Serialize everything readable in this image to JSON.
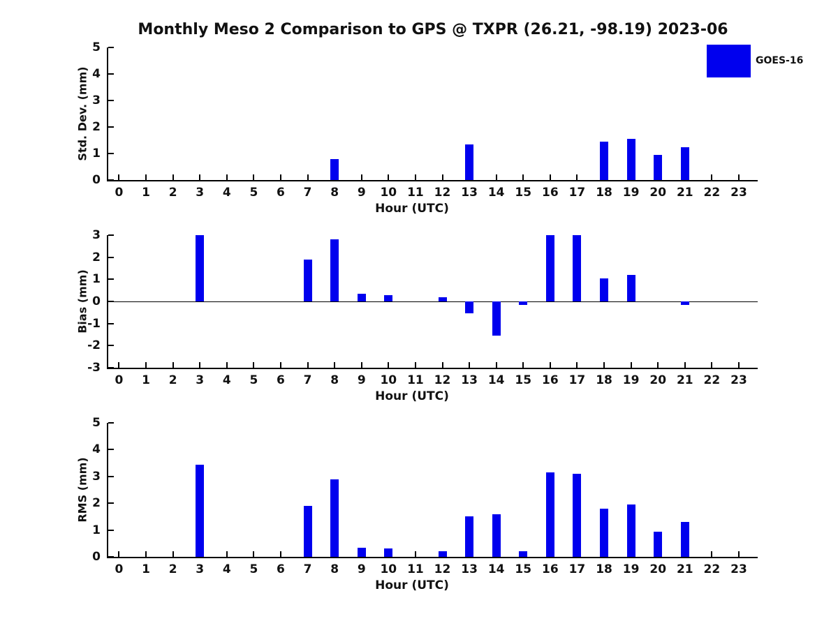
{
  "title": "Monthly Meso 2 Comparison to GPS @ TXPR (26.21, -98.19) 2023-06",
  "legend": {
    "label": "GOES-16",
    "color": "#0000ee",
    "position": "top-right-inside-first-axes"
  },
  "axis_color": "#000000",
  "text_color": "#111111",
  "chart_data": [
    {
      "type": "bar",
      "name": "std-dev",
      "title": "",
      "ylabel": "Std. Dev. (mm)",
      "xlabel": "Hour (UTC)",
      "ylim": [
        0,
        5
      ],
      "yticks": [
        0,
        1,
        2,
        3,
        4,
        5
      ],
      "xlim": [
        -0.4,
        23.7
      ],
      "x": [
        0,
        1,
        2,
        3,
        4,
        5,
        6,
        7,
        8,
        9,
        10,
        11,
        12,
        13,
        14,
        15,
        16,
        17,
        18,
        19,
        20,
        21,
        22,
        23
      ],
      "zero_line": false,
      "grid": false,
      "series": [
        {
          "name": "GOES-16",
          "values": [
            null,
            null,
            null,
            null,
            null,
            null,
            null,
            null,
            0.8,
            null,
            null,
            null,
            null,
            1.35,
            null,
            null,
            null,
            null,
            1.45,
            1.55,
            0.95,
            1.25,
            null,
            null
          ]
        }
      ]
    },
    {
      "type": "bar",
      "name": "bias",
      "title": "",
      "ylabel": "Bias (mm)",
      "xlabel": "Hour (UTC)",
      "ylim": [
        -3,
        3
      ],
      "yticks": [
        -3,
        -2,
        -1,
        0,
        1,
        2,
        3
      ],
      "xlim": [
        -0.4,
        23.7
      ],
      "x": [
        0,
        1,
        2,
        3,
        4,
        5,
        6,
        7,
        8,
        9,
        10,
        11,
        12,
        13,
        14,
        15,
        16,
        17,
        18,
        19,
        20,
        21,
        22,
        23
      ],
      "zero_line": true,
      "grid": false,
      "series": [
        {
          "name": "GOES-16",
          "values": [
            null,
            null,
            null,
            3.0,
            null,
            null,
            null,
            1.9,
            2.8,
            0.35,
            0.3,
            null,
            0.2,
            -0.55,
            -1.55,
            -0.15,
            3.0,
            3.0,
            1.05,
            1.2,
            null,
            -0.15,
            null,
            null
          ]
        }
      ]
    },
    {
      "type": "bar",
      "name": "rms",
      "title": "",
      "ylabel": "RMS (mm)",
      "xlabel": "Hour (UTC)",
      "ylim": [
        0,
        5
      ],
      "yticks": [
        0,
        1,
        2,
        3,
        4,
        5
      ],
      "xlim": [
        -0.4,
        23.7
      ],
      "x": [
        0,
        1,
        2,
        3,
        4,
        5,
        6,
        7,
        8,
        9,
        10,
        11,
        12,
        13,
        14,
        15,
        16,
        17,
        18,
        19,
        20,
        21,
        22,
        23
      ],
      "zero_line": false,
      "grid": false,
      "series": [
        {
          "name": "GOES-16",
          "values": [
            null,
            null,
            null,
            3.45,
            null,
            null,
            null,
            1.9,
            2.9,
            0.35,
            0.3,
            null,
            0.2,
            1.5,
            1.6,
            0.2,
            3.15,
            3.1,
            1.8,
            1.95,
            0.95,
            1.3,
            null,
            null
          ]
        }
      ]
    }
  ]
}
